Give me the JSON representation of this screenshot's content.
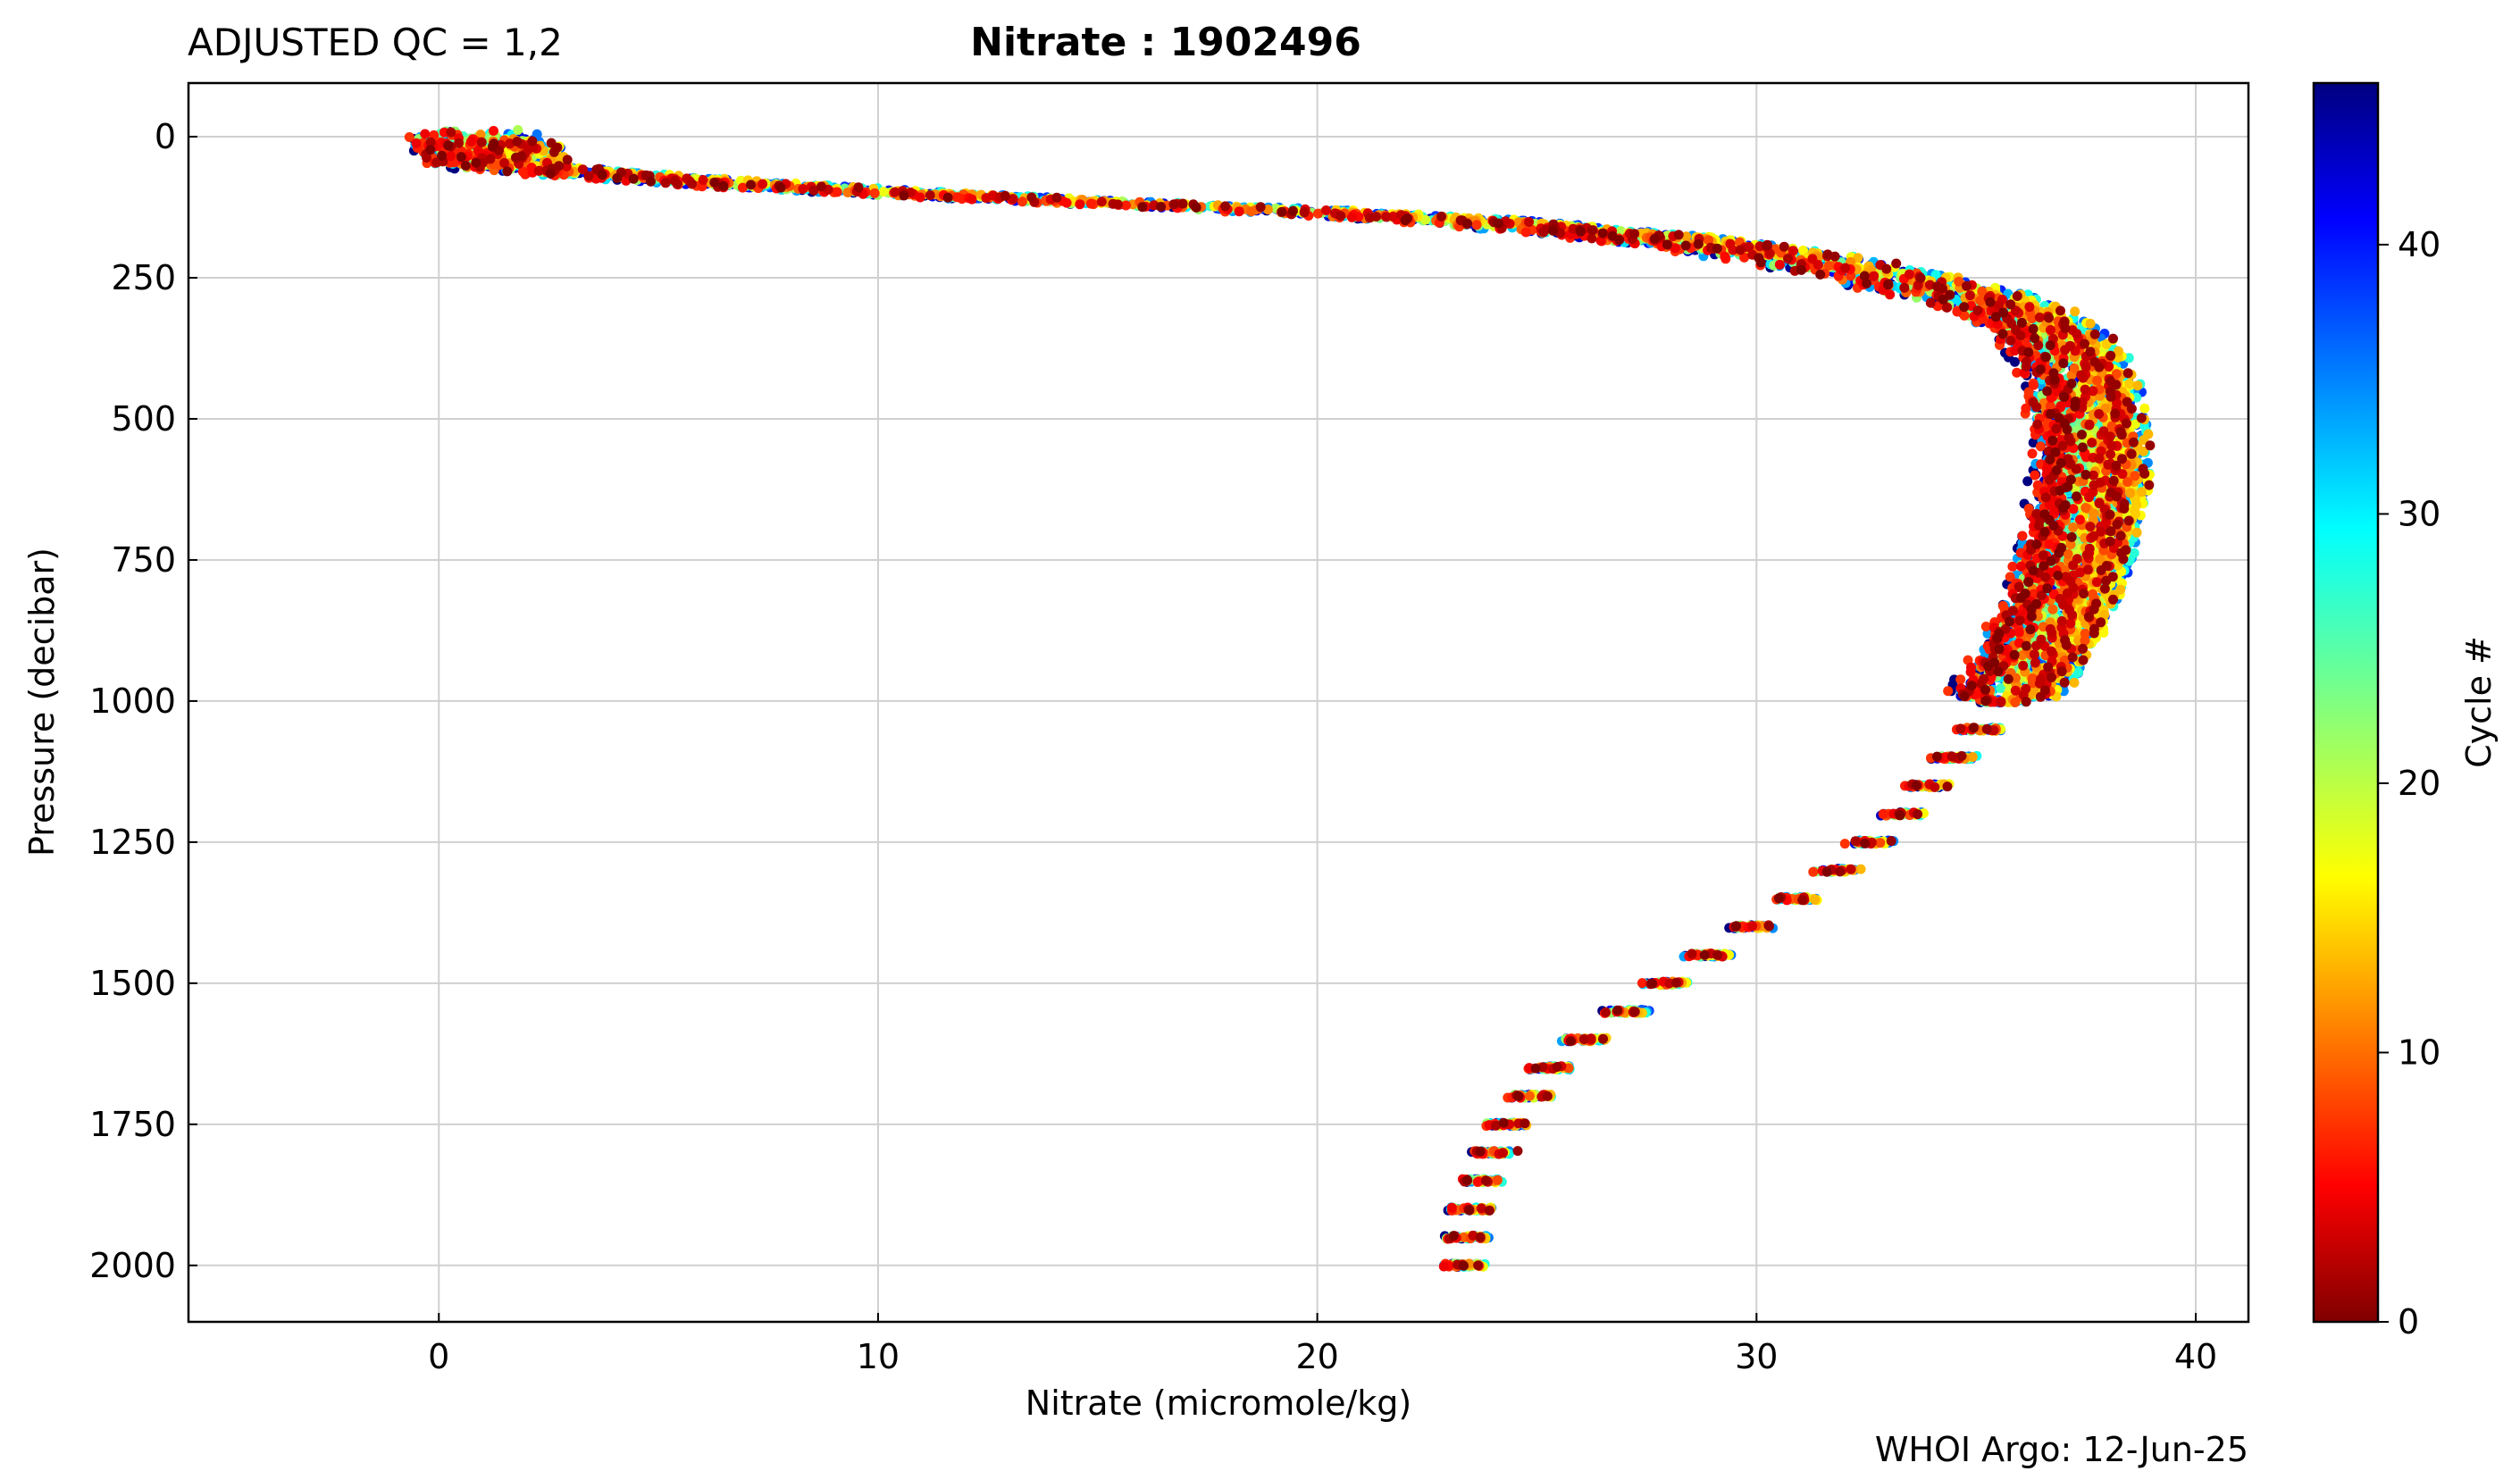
{
  "header": {
    "qc_label": "ADJUSTED QC = 1,2",
    "title": "Nitrate : 1902496"
  },
  "footer": {
    "credit": "WHOI Argo: 12-Jun-25"
  },
  "chart_data": {
    "type": "scatter",
    "xlabel": "Nitrate  (micromole/kg)",
    "ylabel": "Pressure  (decibar)",
    "xlim": [
      -5.7,
      41.2
    ],
    "ylim": [
      2100,
      -95
    ],
    "y_inverted": true,
    "grid": true,
    "x_ticks": [
      0,
      10,
      20,
      30,
      40
    ],
    "y_ticks": [
      0,
      250,
      500,
      750,
      1000,
      1250,
      1500,
      1750,
      2000
    ],
    "colorbar": {
      "label": "Cycle #",
      "min": 0,
      "max": 46,
      "ticks": [
        0,
        10,
        20,
        30,
        40
      ],
      "colormap": "jet"
    },
    "profile_description": "Nitrate profiles for cycles 0-46 colored by cycle number",
    "profiles_mean": {
      "pressure": [
        10,
        30,
        50,
        60,
        75,
        90,
        100,
        110,
        120,
        130,
        150,
        175,
        200,
        225,
        250,
        275,
        300,
        325,
        350,
        375,
        400,
        450,
        500,
        550,
        600,
        650,
        700,
        750,
        800,
        850,
        900,
        950,
        1000,
        1050,
        1100,
        1150,
        1200,
        1250,
        1300,
        1350,
        1400,
        1450,
        1500,
        1550,
        1600,
        1650,
        1700,
        1750,
        1800,
        1850,
        1900,
        1950,
        2000
      ],
      "nitrate": [
        1.0,
        1.1,
        1.3,
        2.5,
        5.0,
        8.0,
        10.5,
        13.0,
        16.0,
        19.0,
        23.5,
        27.0,
        29.5,
        31.5,
        33.0,
        34.3,
        35.4,
        36.1,
        36.6,
        37.0,
        37.2,
        37.4,
        37.5,
        37.6,
        37.6,
        37.5,
        37.4,
        37.2,
        37.0,
        36.7,
        36.4,
        36.0,
        35.6,
        35.1,
        34.5,
        33.9,
        33.3,
        32.6,
        31.8,
        30.9,
        29.9,
        28.9,
        27.9,
        27.0,
        26.1,
        25.3,
        24.8,
        24.3,
        24.0,
        23.7,
        23.5,
        23.4,
        23.3
      ]
    }
  }
}
